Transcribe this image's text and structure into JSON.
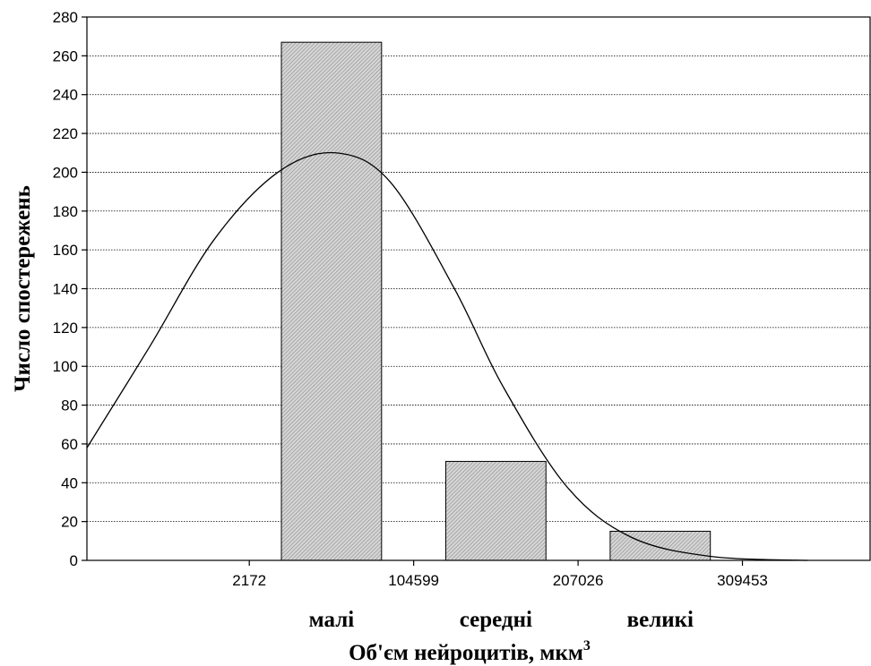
{
  "chart_data": {
    "type": "bar",
    "xlabel": "Об'єм нейроцитів, мкм",
    "xlabel_sup": "3",
    "ylabel": "Число спостережень",
    "ylim": [
      0,
      280
    ],
    "yticks": [
      0,
      20,
      40,
      60,
      80,
      100,
      120,
      140,
      160,
      180,
      200,
      220,
      240,
      260,
      280
    ],
    "xticks": [
      2172,
      104599,
      207026,
      309453
    ],
    "xlim": [
      -98999,
      389000
    ],
    "categories": [
      "малі",
      "середні",
      "великі"
    ],
    "bins": [
      {
        "from": 2172,
        "to": 104599
      },
      {
        "from": 104599,
        "to": 207026
      },
      {
        "from": 207026,
        "to": 309453
      }
    ],
    "values": [
      267,
      51,
      15
    ],
    "grid": "horizontal",
    "fit_curve": {
      "type": "normal",
      "points": [
        [
          -98999,
          58
        ],
        [
          -60000,
          110
        ],
        [
          -20000,
          165
        ],
        [
          20000,
          200
        ],
        [
          56000,
          210
        ],
        [
          90000,
          195
        ],
        [
          130000,
          140
        ],
        [
          160000,
          90
        ],
        [
          200000,
          38
        ],
        [
          240000,
          12
        ],
        [
          290000,
          2
        ],
        [
          350000,
          0
        ]
      ]
    }
  }
}
